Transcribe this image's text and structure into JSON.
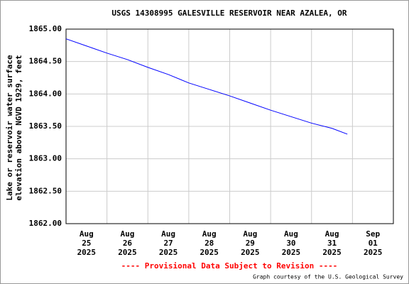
{
  "chart_data": {
    "type": "line",
    "title": "USGS 14308995 GALESVILLE RESERVOIR NEAR AZALEA, OR",
    "ylabel": [
      "Lake or reservoir water surface",
      "elevation above NGVD 1929, feet"
    ],
    "x": [
      "2025-08-25T00:00",
      "2025-08-25T12:00",
      "2025-08-26T00:00",
      "2025-08-26T12:00",
      "2025-08-27T00:00",
      "2025-08-27T12:00",
      "2025-08-28T00:00",
      "2025-08-28T12:00",
      "2025-08-29T00:00",
      "2025-08-29T12:00",
      "2025-08-30T00:00",
      "2025-08-30T12:00",
      "2025-08-31T00:00",
      "2025-08-31T12:00",
      "2025-08-31T21:00"
    ],
    "values": [
      1864.85,
      1864.74,
      1864.63,
      1864.53,
      1864.41,
      1864.3,
      1864.17,
      1864.07,
      1863.97,
      1863.86,
      1863.75,
      1863.65,
      1863.55,
      1863.47,
      1863.38
    ],
    "color": "#0000ff",
    "xlim": [
      "2025-08-25T00:00",
      "2025-09-02T00:00"
    ],
    "xticks": [
      {
        "value": "2025-08-25T00:00",
        "label": [
          "Aug",
          "25",
          "2025"
        ]
      },
      {
        "value": "2025-08-26T00:00",
        "label": [
          "Aug",
          "26",
          "2025"
        ]
      },
      {
        "value": "2025-08-27T00:00",
        "label": [
          "Aug",
          "27",
          "2025"
        ]
      },
      {
        "value": "2025-08-28T00:00",
        "label": [
          "Aug",
          "28",
          "2025"
        ]
      },
      {
        "value": "2025-08-29T00:00",
        "label": [
          "Aug",
          "29",
          "2025"
        ]
      },
      {
        "value": "2025-08-30T00:00",
        "label": [
          "Aug",
          "30",
          "2025"
        ]
      },
      {
        "value": "2025-08-31T00:00",
        "label": [
          "Aug",
          "31",
          "2025"
        ]
      },
      {
        "value": "2025-09-01T00:00",
        "label": [
          "Sep",
          "01",
          "2025"
        ]
      }
    ],
    "ylim": [
      1862,
      1865
    ],
    "yticks": [
      {
        "value": 1862,
        "label": "1862.00"
      },
      {
        "value": 1862.5,
        "label": "1862.50"
      },
      {
        "value": 1863,
        "label": "1863.00"
      },
      {
        "value": 1863.5,
        "label": "1863.50"
      },
      {
        "value": 1864,
        "label": "1864.00"
      },
      {
        "value": 1864.5,
        "label": "1864.50"
      },
      {
        "value": 1865,
        "label": "1865.00"
      }
    ],
    "grid": true,
    "provisional_note": "---- Provisional Data Subject to Revision ----",
    "credit": "Graph courtesy of the U.S. Geological Survey"
  }
}
